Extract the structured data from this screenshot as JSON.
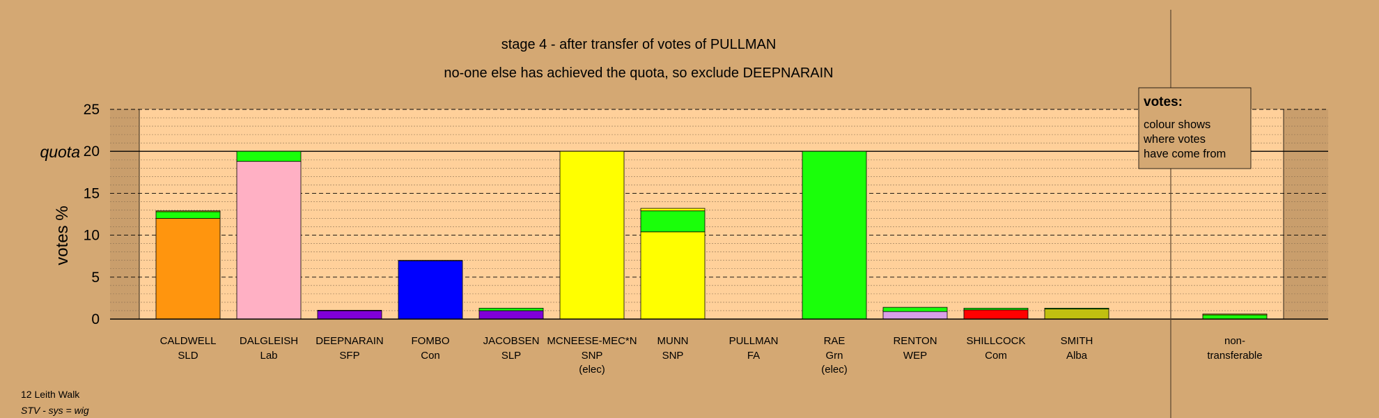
{
  "chart_data": {
    "type": "bar",
    "title": "stage 4 - after transfer of votes of PULLMAN",
    "subtitle": "no-one else has achieved the quota, so exclude DEEPNARAIN",
    "ylabel": "votes %",
    "quota_label": "quota",
    "quota": 20,
    "ylim": [
      0,
      25
    ],
    "yticks": [
      0,
      5,
      10,
      15,
      20,
      25
    ],
    "grid": true,
    "colors": {
      "SLD": "#ff950e",
      "Lab": "#ffb0c4",
      "SFP": "#8000d8",
      "Con": "#0000ff",
      "SNP": "#ffff00",
      "Grn": "#1aff0a",
      "Com": "#ff0000",
      "Alba": "#c0c010",
      "WEP": "#d8a0e8",
      "plot_bg": "#ffd09a",
      "page_bg": "#d4a873"
    },
    "candidates": [
      {
        "name": "CALDWELL",
        "party": "SLD",
        "note": "",
        "segments": [
          {
            "color": "#ff950e",
            "value": 12.0
          },
          {
            "color": "#1aff0a",
            "value": 0.8
          },
          {
            "color": "#ffff00",
            "value": 0.1
          }
        ]
      },
      {
        "name": "DALGLEISH",
        "party": "Lab",
        "note": "",
        "segments": [
          {
            "color": "#ffb0c4",
            "value": 18.8
          },
          {
            "color": "#1aff0a",
            "value": 1.2
          }
        ]
      },
      {
        "name": "DEEPNARAIN",
        "party": "SFP",
        "note": "",
        "segments": [
          {
            "color": "#8000d8",
            "value": 1.0
          },
          {
            "color": "#ffff00",
            "value": 0.05
          }
        ]
      },
      {
        "name": "FOMBO",
        "party": "Con",
        "note": "",
        "segments": [
          {
            "color": "#0000ff",
            "value": 6.95
          },
          {
            "color": "#ffff00",
            "value": 0.05
          }
        ]
      },
      {
        "name": "JACOBSEN",
        "party": "SLP",
        "note": "",
        "segments": [
          {
            "color": "#8000d8",
            "value": 1.0
          },
          {
            "color": "#1aff0a",
            "value": 0.3
          }
        ]
      },
      {
        "name": "MCNEESE-MEC*N",
        "party": "SNP",
        "note": "(elec)",
        "segments": [
          {
            "color": "#ffff00",
            "value": 20.0
          }
        ]
      },
      {
        "name": "MUNN",
        "party": "SNP",
        "note": "",
        "segments": [
          {
            "color": "#ffff00",
            "value": 10.4
          },
          {
            "color": "#1aff0a",
            "value": 2.5
          },
          {
            "color": "#ffff00",
            "value": 0.3
          }
        ]
      },
      {
        "name": "PULLMAN",
        "party": "FA",
        "note": "",
        "segments": []
      },
      {
        "name": "RAE",
        "party": "Grn",
        "note": "(elec)",
        "segments": [
          {
            "color": "#1aff0a",
            "value": 20.0
          }
        ]
      },
      {
        "name": "RENTON",
        "party": "WEP",
        "note": "",
        "segments": [
          {
            "color": "#d8a0e8",
            "value": 0.9
          },
          {
            "color": "#1aff0a",
            "value": 0.5
          }
        ]
      },
      {
        "name": "SHILLCOCK",
        "party": "Com",
        "note": "",
        "segments": [
          {
            "color": "#ff0000",
            "value": 1.1
          },
          {
            "color": "#1aff0a",
            "value": 0.2
          }
        ]
      },
      {
        "name": "SMITH",
        "party": "Alba",
        "note": "",
        "segments": [
          {
            "color": "#c0c010",
            "value": 1.2
          },
          {
            "color": "#1aff0a",
            "value": 0.1
          }
        ]
      }
    ],
    "non_transferable": {
      "label_line1": "non-",
      "label_line2": "transferable",
      "segments": [
        {
          "color": "#1aff0a",
          "value": 0.5
        },
        {
          "color": "#ffff00",
          "value": 0.1
        }
      ]
    },
    "legend": {
      "position": "top-right",
      "title": "votes:",
      "lines": [
        "colour shows",
        "where votes",
        "have come from"
      ]
    }
  },
  "footer": {
    "ward": "12 Leith Walk",
    "system": "STV - sys = wig"
  }
}
